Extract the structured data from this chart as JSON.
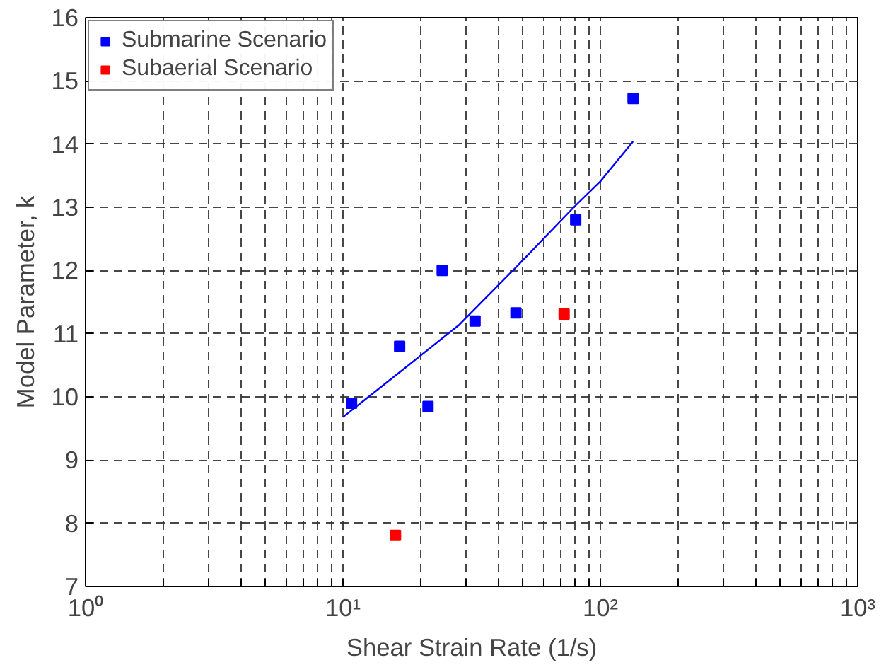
{
  "chart_data": {
    "type": "scatter",
    "xlabel": "Shear Strain Rate (1/s)",
    "ylabel": "Model Parameter, k",
    "log": "x",
    "grid": true,
    "legend": "top left",
    "marker": "square",
    "xlim": [
      1,
      1000
    ],
    "ylim": [
      7,
      16
    ],
    "xticks": [
      {
        "value": 1,
        "label": "10⁰"
      },
      {
        "value": 2,
        "label": null
      },
      {
        "value": 3,
        "label": null
      },
      {
        "value": 4,
        "label": null
      },
      {
        "value": 5,
        "label": null
      },
      {
        "value": 6,
        "label": null
      },
      {
        "value": 7,
        "label": null
      },
      {
        "value": 8,
        "label": null
      },
      {
        "value": 9,
        "label": null
      },
      {
        "value": 10,
        "label": "10¹"
      },
      {
        "value": 20,
        "label": null
      },
      {
        "value": 30,
        "label": null
      },
      {
        "value": 40,
        "label": null
      },
      {
        "value": 50,
        "label": null
      },
      {
        "value": 60,
        "label": null
      },
      {
        "value": 70,
        "label": null
      },
      {
        "value": 80,
        "label": null
      },
      {
        "value": 90,
        "label": null
      },
      {
        "value": 100,
        "label": "10²"
      },
      {
        "value": 200,
        "label": null
      },
      {
        "value": 300,
        "label": null
      },
      {
        "value": 400,
        "label": null
      },
      {
        "value": 500,
        "label": null
      },
      {
        "value": 600,
        "label": null
      },
      {
        "value": 700,
        "label": null
      },
      {
        "value": 800,
        "label": null
      },
      {
        "value": 900,
        "label": null
      },
      {
        "value": 1000,
        "label": "10³"
      }
    ],
    "yticks": [
      7,
      8,
      9,
      10,
      11,
      12,
      13,
      14,
      15,
      16
    ],
    "series": [
      {
        "name": "Submarine Scenario",
        "color": "#0000ff",
        "x": [
          10.8,
          16.6,
          21.4,
          24.3,
          32.6,
          47,
          80.2,
          134
        ],
        "values": [
          9.9,
          10.8,
          9.85,
          12.0,
          11.2,
          11.33,
          12.8,
          14.72
        ]
      },
      {
        "name": "Subaerial Scenario",
        "color": "#ff0000",
        "x": [
          16,
          72.3
        ],
        "values": [
          7.81,
          11.31
        ]
      },
      {
        "color": "#0000ff",
        "type": "line",
        "marker": "none",
        "x": [
          10,
          17.2,
          28.1,
          47,
          78.8,
          100,
          134
        ],
        "values": [
          9.68,
          10.44,
          11.13,
          12.05,
          13.0,
          13.41,
          14.04
        ]
      }
    ]
  }
}
